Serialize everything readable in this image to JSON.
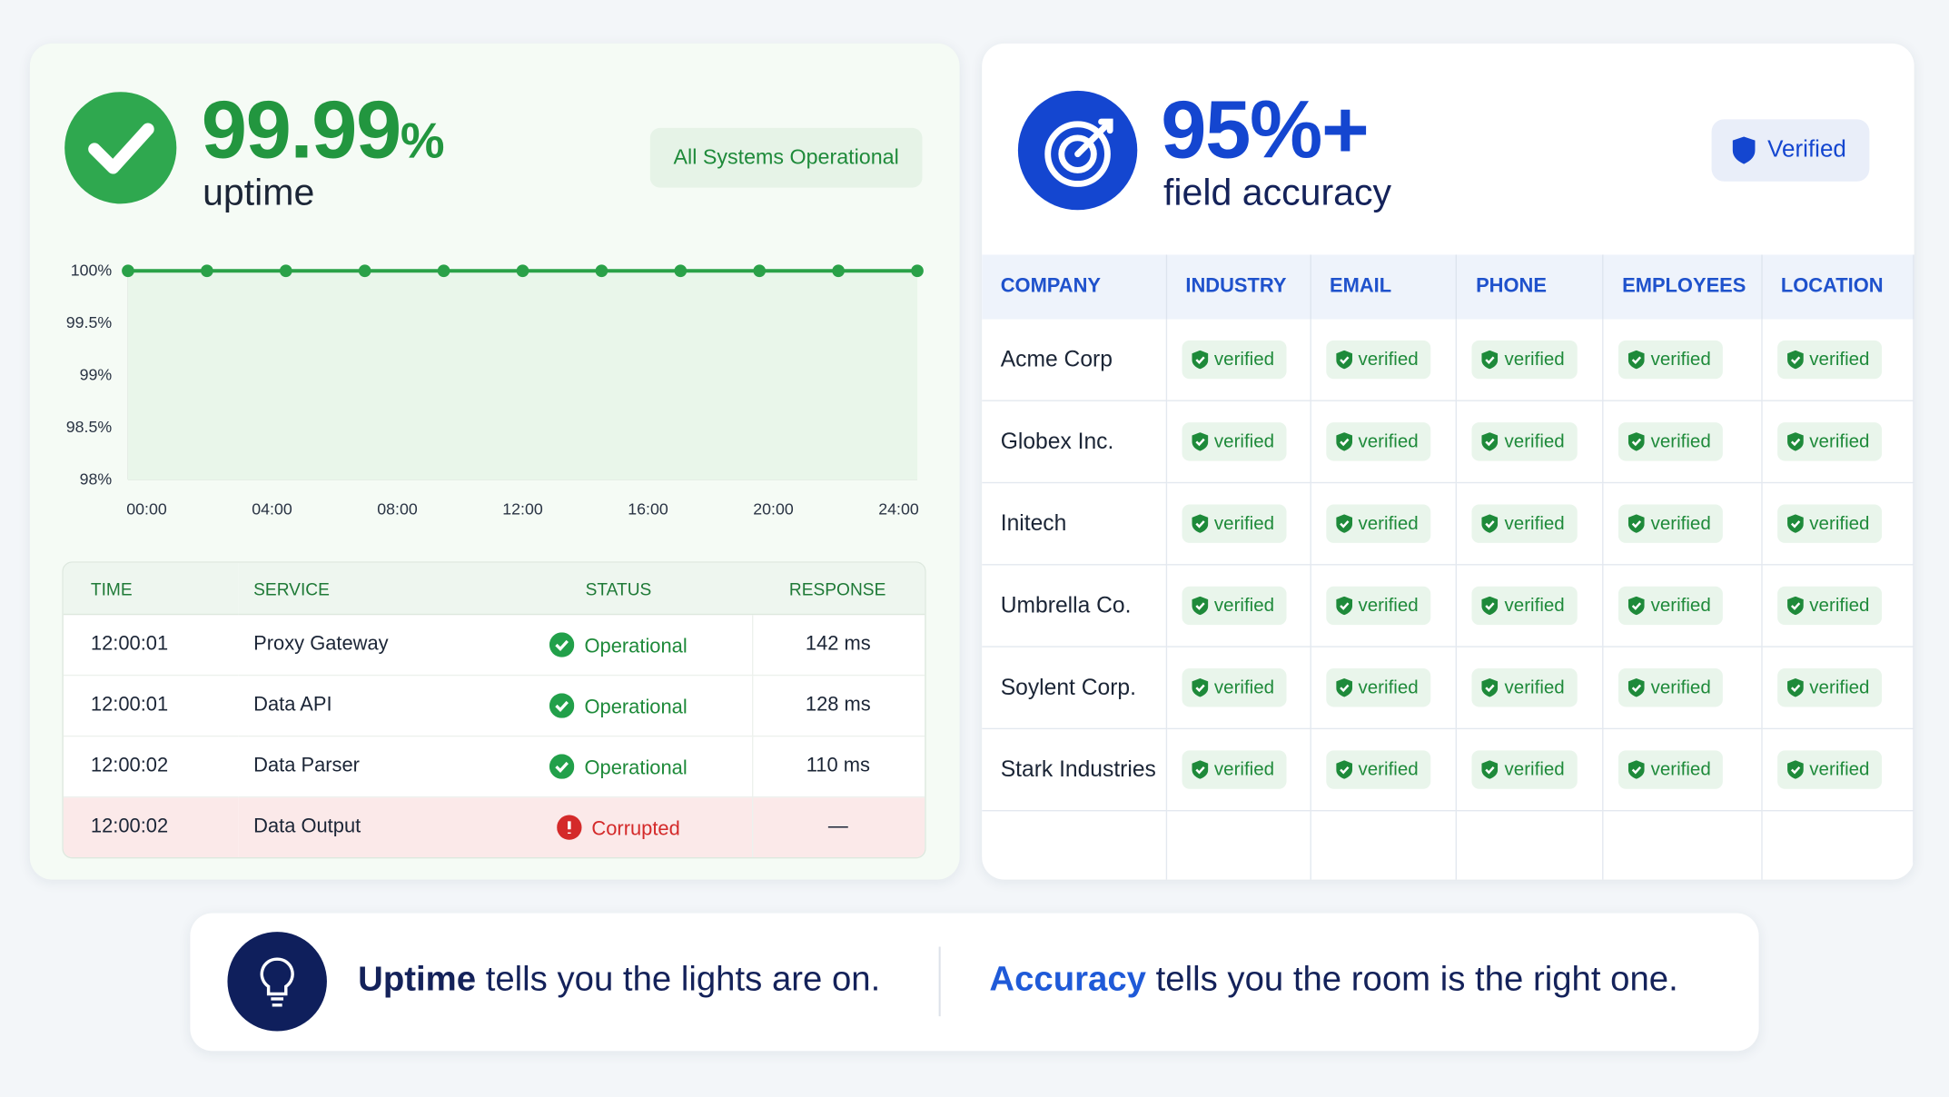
{
  "uptime": {
    "value": "99.99",
    "unit": "%",
    "label": "uptime",
    "badge": "All Systems Operational"
  },
  "chart_data": {
    "type": "line",
    "x": [
      0,
      2.4,
      4.8,
      7.2,
      9.6,
      12,
      14.4,
      16.8,
      19.2,
      21.6,
      24
    ],
    "values": [
      100,
      100,
      100,
      100,
      100,
      100,
      100,
      100,
      100,
      100,
      100
    ],
    "color": "#2aa148",
    "xlim": [
      0,
      24
    ],
    "xticks": [
      {
        "value": 0,
        "label": "00:00"
      },
      {
        "value": 4,
        "label": "04:00"
      },
      {
        "value": 8,
        "label": "08:00"
      },
      {
        "value": 12,
        "label": "12:00"
      },
      {
        "value": 16,
        "label": "16:00"
      },
      {
        "value": 20,
        "label": "20:00"
      },
      {
        "value": 24,
        "label": "24:00"
      }
    ],
    "ylim": [
      98,
      100
    ],
    "yticks": [
      {
        "value": 100,
        "label": "100%"
      },
      {
        "value": 99.5,
        "label": "99.5%"
      },
      {
        "value": 99,
        "label": "99%"
      },
      {
        "value": 98.5,
        "label": "98.5%"
      },
      {
        "value": 98,
        "label": "98%"
      }
    ]
  },
  "log_table": {
    "headers": [
      "TIME",
      "SERVICE",
      "STATUS",
      "RESPONSE"
    ],
    "rows": [
      [
        "12:00:01",
        "Proxy Gateway",
        "Operational",
        "142 ms"
      ],
      [
        "12:00:01",
        "Data API",
        "Operational",
        "128 ms"
      ],
      [
        "12:00:02",
        "Data Parser",
        "Operational",
        "110 ms"
      ],
      [
        "12:00:02",
        "Data Output",
        "Corrupted",
        "—"
      ]
    ]
  },
  "accuracy": {
    "value": "95%+",
    "label": "field accuracy",
    "badge": "Verified"
  },
  "accuracy_table": {
    "headers": [
      "COMPANY",
      "INDUSTRY",
      "EMAIL",
      "PHONE",
      "EMPLOYEES",
      "LOCATION"
    ],
    "rows": [
      [
        "Acme Corp",
        "verified",
        "verified",
        "verified",
        "verified",
        "verified"
      ],
      [
        "Globex Inc.",
        "verified",
        "verified",
        "verified",
        "verified",
        "verified"
      ],
      [
        "Initech",
        "verified",
        "verified",
        "verified",
        "verified",
        "verified"
      ],
      [
        "Umbrella Co.",
        "verified",
        "verified",
        "verified",
        "verified",
        "verified"
      ],
      [
        "Soylent Corp.",
        "verified",
        "verified",
        "verified",
        "verified",
        "verified"
      ],
      [
        "Stark Industries",
        "verified",
        "verified",
        "verified",
        "verified",
        "verified"
      ]
    ]
  },
  "footer": {
    "left_strong": "Uptime",
    "left_rest": " tells you the lights are on.",
    "right_strong": "Accuracy",
    "right_rest": " tells you the room is the right one."
  }
}
